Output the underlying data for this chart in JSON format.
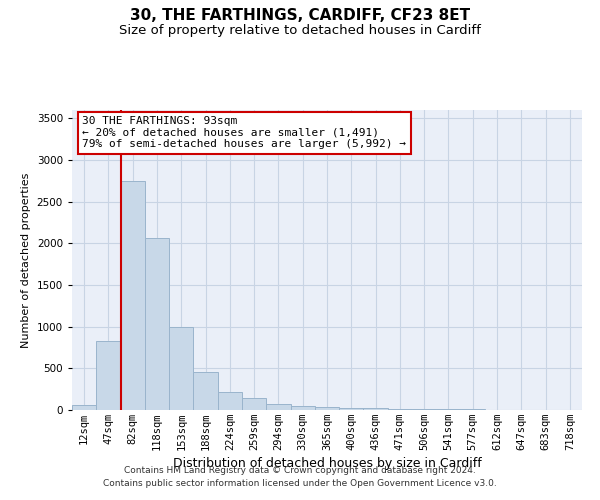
{
  "title": "30, THE FARTHINGS, CARDIFF, CF23 8ET",
  "subtitle": "Size of property relative to detached houses in Cardiff",
  "xlabel": "Distribution of detached houses by size in Cardiff",
  "ylabel": "Number of detached properties",
  "footer_line1": "Contains HM Land Registry data © Crown copyright and database right 2024.",
  "footer_line2": "Contains public sector information licensed under the Open Government Licence v3.0.",
  "bar_labels": [
    "12sqm",
    "47sqm",
    "82sqm",
    "118sqm",
    "153sqm",
    "188sqm",
    "224sqm",
    "259sqm",
    "294sqm",
    "330sqm",
    "365sqm",
    "400sqm",
    "436sqm",
    "471sqm",
    "506sqm",
    "541sqm",
    "577sqm",
    "612sqm",
    "647sqm",
    "683sqm",
    "718sqm"
  ],
  "bar_values": [
    60,
    830,
    2750,
    2070,
    1000,
    460,
    215,
    145,
    75,
    50,
    35,
    30,
    20,
    15,
    12,
    10,
    8,
    6,
    5,
    4,
    3
  ],
  "bar_color": "#c8d8e8",
  "bar_edge_color": "#9ab4cc",
  "red_line_color": "#cc0000",
  "annotation_text": "30 THE FARTHINGS: 93sqm\n← 20% of detached houses are smaller (1,491)\n79% of semi-detached houses are larger (5,992) →",
  "annotation_box_color": "#ffffff",
  "annotation_border_color": "#cc0000",
  "ylim": [
    0,
    3600
  ],
  "yticks": [
    0,
    500,
    1000,
    1500,
    2000,
    2500,
    3000,
    3500
  ],
  "grid_color": "#c8d4e4",
  "bg_color": "#eaeff8",
  "title_fontsize": 11,
  "subtitle_fontsize": 9.5,
  "xlabel_fontsize": 9,
  "ylabel_fontsize": 8,
  "tick_fontsize": 7.5,
  "footer_fontsize": 6.5,
  "annotation_fontsize": 8
}
